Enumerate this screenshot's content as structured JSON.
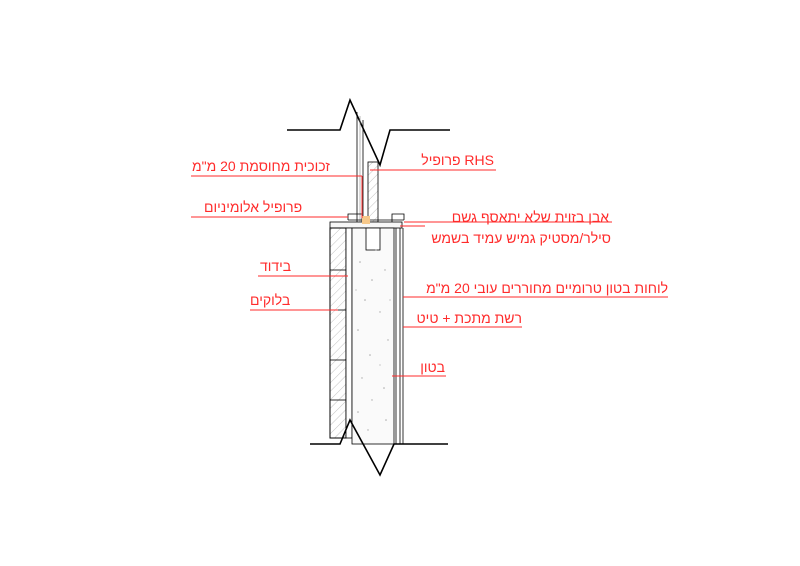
{
  "colors": {
    "annotation": "#ff2b2b",
    "line": "#000000",
    "hatch": "#888888"
  },
  "labels": {
    "rhs_profile": "פרופיל RHS",
    "glass": "זכוכית מחוסמת 20 מ\"מ",
    "aluminum_profile": "פרופיל אלומיניום",
    "stone": "אבן בזוית שלא יתאסף גשם",
    "sealer": "סילר/מסטיק גמיש עמיד בשמש",
    "insulation": "בידוד",
    "concrete_boards": "לוחות בטון טרומיים מחוררים עובי 20 מ\"מ",
    "blocks": "בלוקים",
    "mesh": "רשת מתכת + טיט",
    "concrete": "בטון"
  }
}
